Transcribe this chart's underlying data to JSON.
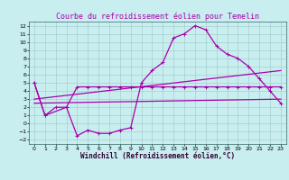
{
  "title": "Courbe du refroidissement éolien pour Temelin",
  "xlabel": "Windchill (Refroidissement éolien,°C)",
  "xlim": [
    -0.5,
    23.5
  ],
  "ylim": [
    -2.5,
    12.5
  ],
  "xticks": [
    0,
    1,
    2,
    3,
    4,
    5,
    6,
    7,
    8,
    9,
    10,
    11,
    12,
    13,
    14,
    15,
    16,
    17,
    18,
    19,
    20,
    21,
    22,
    23
  ],
  "yticks": [
    -2,
    -1,
    0,
    1,
    2,
    3,
    4,
    5,
    6,
    7,
    8,
    9,
    10,
    11,
    12
  ],
  "bg_color": "#c8eef0",
  "grid_color": "#a0c8c8",
  "line_color": "#aa00aa",
  "line1_x": [
    0,
    1,
    3,
    4,
    5,
    6,
    7,
    8,
    9,
    10,
    11,
    12,
    13,
    14,
    15,
    16,
    17,
    18,
    19,
    20,
    21,
    22,
    23
  ],
  "line1_y": [
    5,
    1,
    2,
    -1.5,
    -0.8,
    -1.2,
    -1.2,
    -0.8,
    -0.5,
    5,
    6.5,
    7.5,
    10.5,
    11,
    12,
    11.5,
    9.5,
    8.5,
    8,
    7,
    5.5,
    4,
    2.5
  ],
  "line2_x": [
    0,
    1,
    2,
    3,
    4,
    5,
    6,
    7,
    8,
    9,
    10,
    11,
    12,
    13,
    14,
    15,
    16,
    17,
    18,
    19,
    20,
    21,
    22,
    23
  ],
  "line2_y": [
    5,
    1,
    2,
    2,
    4.5,
    4.5,
    4.5,
    4.5,
    4.5,
    4.5,
    4.5,
    4.5,
    4.5,
    4.5,
    4.5,
    4.5,
    4.5,
    4.5,
    4.5,
    4.5,
    4.5,
    4.5,
    4.5,
    4.5
  ],
  "line3_x": [
    0,
    23
  ],
  "line3_y": [
    2.5,
    3.0
  ],
  "line4_x": [
    0,
    23
  ],
  "line4_y": [
    3.0,
    6.5
  ],
  "marker": "+",
  "markersize": 3,
  "linewidth": 0.9,
  "tick_fontsize": 4.5,
  "xlabel_fontsize": 5.5,
  "title_fontsize": 6.0
}
